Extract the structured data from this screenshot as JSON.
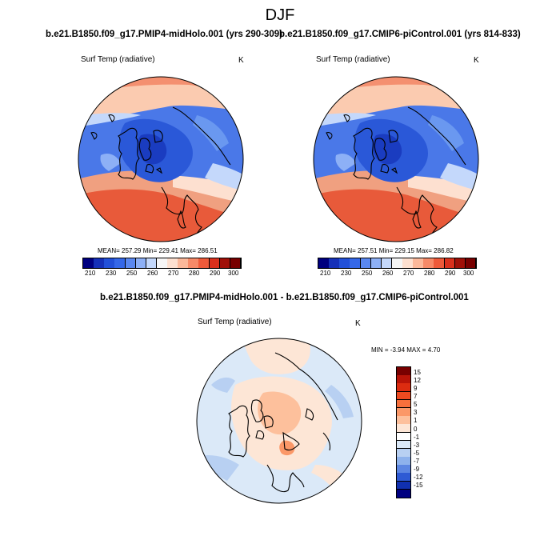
{
  "figure": {
    "season": "DJF",
    "case_a": "b.e21.B1850.f09_g17.PMIP4-midHolo.001 (yrs 290-309)",
    "case_b": "b.e21.B1850.f09_g17.CMIP6-piControl.001 (yrs 814-833)",
    "diff_title": "b.e21.B1850.f09_g17.PMIP4-midHolo.001 - b.e21.B1850.f09_g17.CMIP6-piControl.001"
  },
  "panels": {
    "left": {
      "variable": "Surf Temp (radiative)",
      "units": "K",
      "stats": "MEAN= 257.29  Min= 229.41  Max= 286.51"
    },
    "right": {
      "variable": "Surf Temp (radiative)",
      "units": "K",
      "stats": "MEAN= 257.51  Min= 229.15  Max= 286.82"
    },
    "diff": {
      "variable": "Surf Temp (radiative)",
      "units": "K",
      "stats": "MIN =  -3.94 MAX =   4.70"
    }
  },
  "abs_colorbar": {
    "colors": [
      "#00007f",
      "#1530b8",
      "#2250d8",
      "#3568e8",
      "#5a88f0",
      "#8db0f6",
      "#c4d8fb",
      "#f6f6f6",
      "#fde0d0",
      "#fbb89a",
      "#f68a68",
      "#ee5a3a",
      "#d9301c",
      "#a01008",
      "#780000"
    ],
    "ticks": [
      "210",
      "230",
      "250",
      "260",
      "270",
      "280",
      "290",
      "300"
    ]
  },
  "diff_colorbar": {
    "colors": [
      "#780000",
      "#b81408",
      "#dc2c10",
      "#ee4a20",
      "#f7703c",
      "#fb9868",
      "#fdc09c",
      "#fde6d6",
      "#ffffff",
      "#dbe9f8",
      "#b8d0f2",
      "#8eb2ec",
      "#5c86e2",
      "#2e5ad4",
      "#1030b0",
      "#000080"
    ],
    "ticks": [
      "15",
      "12",
      "9",
      "7",
      "5",
      "3",
      "1",
      "0",
      "-1",
      "-3",
      "-5",
      "-7",
      "-9",
      "-12",
      "-15"
    ]
  }
}
